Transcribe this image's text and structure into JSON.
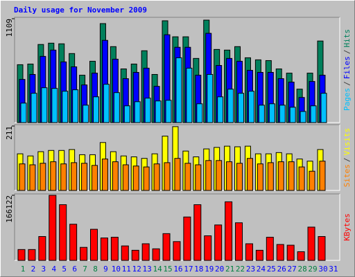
{
  "chart_data": [
    {
      "type": "bar",
      "title": "Daily usage for November 2009",
      "ylim": [
        0,
        1109
      ],
      "yticks": [
        1109
      ],
      "legend_separator": "/",
      "series": [
        {
          "name": "Hits",
          "color": "#00805c",
          "values": [
            618,
            625,
            834,
            848,
            841,
            737,
            506,
            655,
            1057,
            811,
            573,
            625,
            767,
            514,
            1087,
            916,
            916,
            685,
            1094,
            781,
            774,
            811,
            692,
            670,
            662,
            573,
            528,
            357,
            528,
            871,
            0
          ]
        },
        {
          "name": "Files",
          "color": "#0000ff",
          "values": [
            461,
            514,
            707,
            774,
            648,
            595,
            402,
            528,
            878,
            677,
            469,
            536,
            581,
            387,
            938,
            804,
            804,
            506,
            953,
            610,
            685,
            655,
            558,
            536,
            536,
            469,
            432,
            268,
            439,
            506,
            0
          ]
        },
        {
          "name": "Pages",
          "color": "#00c0ff",
          "values": [
            208,
            313,
            372,
            365,
            335,
            350,
            186,
            275,
            409,
            320,
            179,
            223,
            261,
            231,
            238,
            692,
            581,
            201,
            514,
            275,
            357,
            313,
            335,
            186,
            201,
            186,
            164,
            119,
            179,
            313,
            0
          ]
        }
      ]
    },
    {
      "type": "bar",
      "ylim": [
        0,
        211
      ],
      "yticks": [
        211
      ],
      "legend_separator": "/",
      "series": [
        {
          "name": "Visits",
          "color": "#ffff00",
          "values": [
            120,
            113,
            127,
            131,
            131,
            134,
            117,
            117,
            157,
            127,
            113,
            110,
            105,
            120,
            178,
            209,
            129,
            110,
            136,
            141,
            145,
            143,
            145,
            120,
            120,
            124,
            120,
            103,
            96,
            134,
            0
          ]
        },
        {
          "name": "Sites",
          "color": "#ff8000",
          "values": [
            87,
            84,
            89,
            94,
            87,
            91,
            89,
            82,
            103,
            94,
            84,
            80,
            77,
            87,
            91,
            105,
            89,
            84,
            98,
            98,
            94,
            89,
            105,
            87,
            91,
            94,
            94,
            77,
            63,
            96,
            0
          ]
        }
      ]
    },
    {
      "type": "bar",
      "ylim": [
        0,
        166122
      ],
      "yticks": [
        166122
      ],
      "categories": [
        "1",
        "2",
        "3",
        "4",
        "5",
        "6",
        "7",
        "8",
        "9",
        "10",
        "11",
        "12",
        "13",
        "14",
        "15",
        "16",
        "17",
        "18",
        "19",
        "20",
        "21",
        "22",
        "23",
        "24",
        "25",
        "26",
        "27",
        "28",
        "29",
        "30",
        "31"
      ],
      "category_color": "#0000ff",
      "weekend_color": "#008040",
      "weekend_indices": [
        0,
        6,
        7,
        13,
        14,
        20,
        21,
        27,
        28
      ],
      "series": [
        {
          "name": "KBytes",
          "color": "#ff0000",
          "values": [
            27690,
            27690,
            60918,
            166122,
            142142,
            92300,
            33228,
            79378,
            57226,
            59072,
            36920,
            25844,
            42458,
            29536,
            68302,
            47996,
            110760,
            142142,
            62764,
            90454,
            149526,
            95992,
            42458,
            25844,
            59072,
            40612,
            38766,
            22152,
            84916,
            60918,
            0
          ]
        }
      ]
    }
  ]
}
